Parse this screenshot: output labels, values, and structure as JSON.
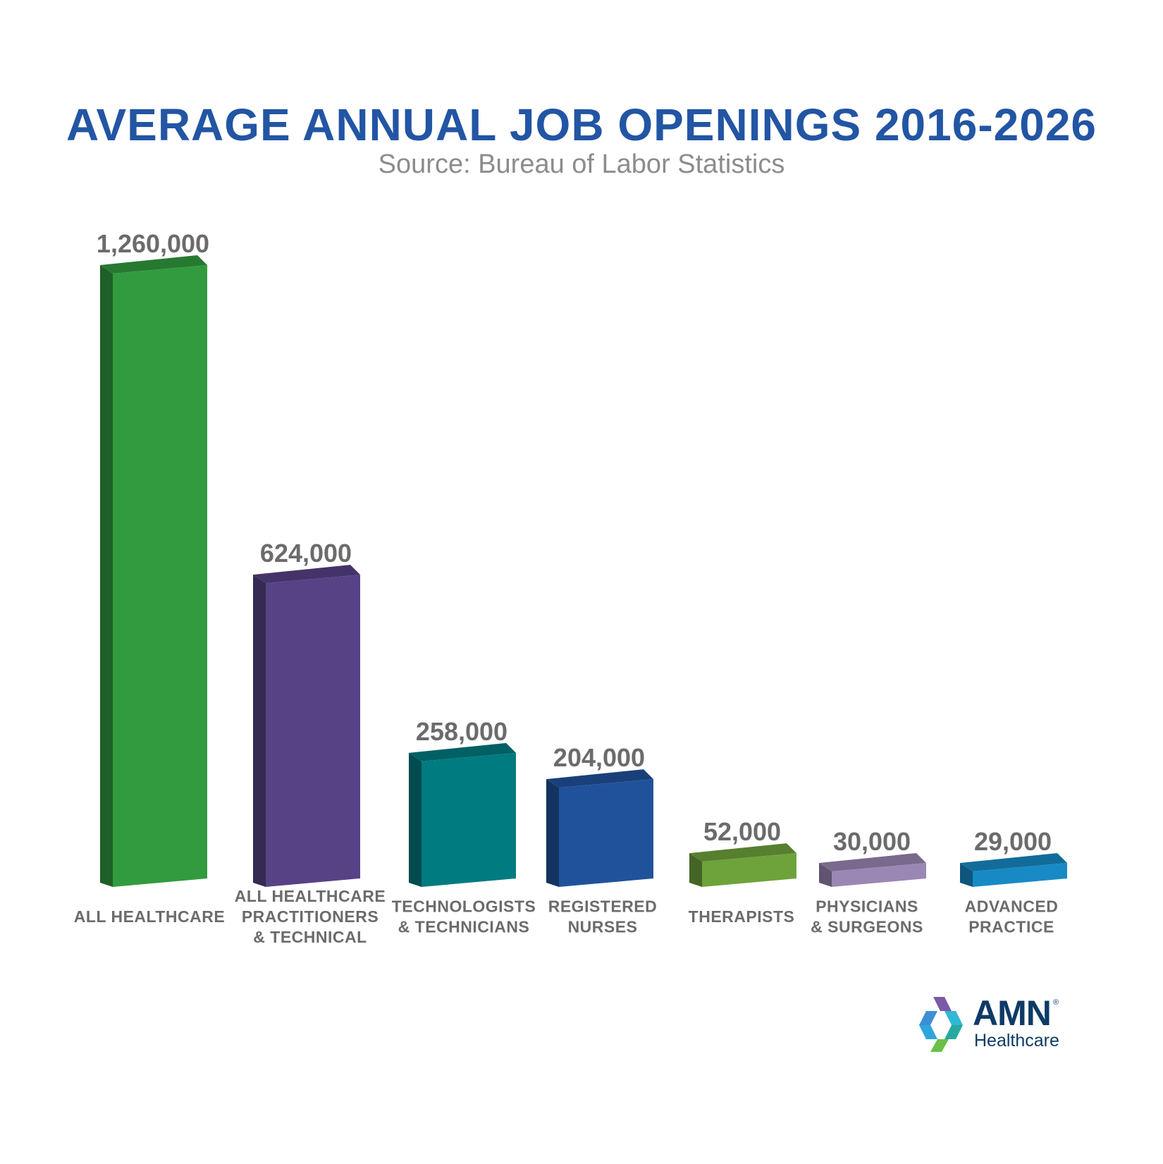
{
  "title": "AVERAGE ANNUAL JOB OPENINGS 2016-2026",
  "subtitle": "Source: Bureau of Labor Statistics",
  "colors": {
    "title": "#2255a4",
    "logo_navy": "#0e3b66"
  },
  "logo": {
    "brand": "AMN",
    "registered": "®",
    "sub": "Healthcare"
  },
  "chart_data": {
    "type": "bar",
    "title": "AVERAGE ANNUAL JOB OPENINGS 2016-2026",
    "subtitle": "Source: Bureau of Labor Statistics",
    "categories": [
      [
        "ALL HEALTHCARE"
      ],
      [
        "ALL HEALTHCARE",
        "PRACTITIONERS",
        "& TECHNICAL"
      ],
      [
        "TECHNOLOGISTS",
        "& TECHNICIANS"
      ],
      [
        "REGISTERED",
        "NURSES"
      ],
      [
        "THERAPISTS"
      ],
      [
        "PHYSICIANS",
        "& SURGEONS"
      ],
      [
        "ADVANCED",
        "PRACTICE"
      ]
    ],
    "values": [
      1260000,
      624000,
      258000,
      204000,
      52000,
      30000,
      29000
    ],
    "value_labels": [
      "1,260,000",
      "624,000",
      "258,000",
      "204,000",
      "52,000",
      "30,000",
      "29,000"
    ],
    "bar_colors": [
      "#329b3f",
      "#574286",
      "#007b80",
      "#20529b",
      "#6ea33b",
      "#9b87b4",
      "#178ac6"
    ],
    "grid": false,
    "legend": "none"
  }
}
